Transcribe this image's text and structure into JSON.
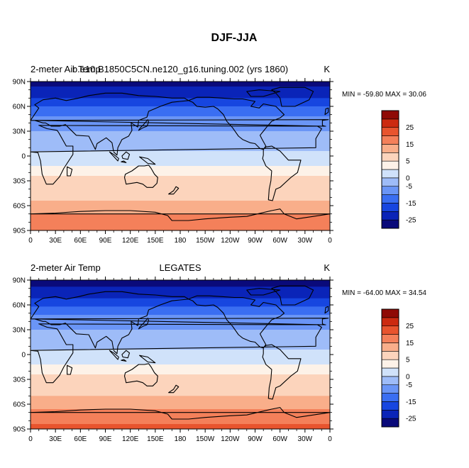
{
  "figure_title": "DJF-JJA",
  "chart_data": [
    {
      "type": "heatmap",
      "panel": "model",
      "left_label": "2-meter Air Temp",
      "case_title": "b.e10.B1850C5CN.ne120_g16.tuning.002 (yrs 1860)",
      "units": "K",
      "min_label": "MIN =",
      "min_value": "-59.80",
      "max_label": "MAX =",
      "max_value": "30.06",
      "x_ticks": [
        "0",
        "30E",
        "60E",
        "90E",
        "120E",
        "150E",
        "180",
        "150W",
        "120W",
        "90W",
        "60W",
        "30W",
        "0"
      ],
      "y_ticks": [
        "90N",
        "60N",
        "30N",
        "0",
        "30S",
        "60S",
        "90S"
      ],
      "xlim": [
        0,
        360
      ],
      "ylim": [
        -90,
        90
      ],
      "field_by_latitude": [
        {
          "lat": 90,
          "value": -27
        },
        {
          "lat": 75,
          "value": -22
        },
        {
          "lat": 60,
          "value": -15
        },
        {
          "lat": 45,
          "value": -9
        },
        {
          "lat": 30,
          "value": -5
        },
        {
          "lat": 15,
          "value": -2
        },
        {
          "lat": 0,
          "value": 1
        },
        {
          "lat": -15,
          "value": 3
        },
        {
          "lat": -30,
          "value": 6
        },
        {
          "lat": -45,
          "value": 8
        },
        {
          "lat": -60,
          "value": 11
        },
        {
          "lat": -75,
          "value": 17
        },
        {
          "lat": -90,
          "value": 20
        }
      ]
    },
    {
      "type": "heatmap",
      "panel": "observations",
      "left_label": "2-meter Air Temp",
      "case_title": "LEGATES",
      "units": "K",
      "min_label": "MIN =",
      "min_value": "-64.00",
      "max_label": "MAX =",
      "max_value": "34.54",
      "x_ticks": [
        "0",
        "30E",
        "60E",
        "90E",
        "120E",
        "150E",
        "180",
        "150W",
        "120W",
        "90W",
        "60W",
        "30W",
        "0"
      ],
      "y_ticks": [
        "90N",
        "60N",
        "30N",
        "0",
        "30S",
        "60S",
        "90S"
      ],
      "xlim": [
        0,
        360
      ],
      "ylim": [
        -90,
        90
      ],
      "field_by_latitude": [
        {
          "lat": 90,
          "value": -28
        },
        {
          "lat": 75,
          "value": -23
        },
        {
          "lat": 60,
          "value": -16
        },
        {
          "lat": 45,
          "value": -9
        },
        {
          "lat": 30,
          "value": -5
        },
        {
          "lat": 15,
          "value": -2
        },
        {
          "lat": 0,
          "value": 1
        },
        {
          "lat": -15,
          "value": 3
        },
        {
          "lat": -30,
          "value": 6
        },
        {
          "lat": -45,
          "value": 8
        },
        {
          "lat": -60,
          "value": 13
        },
        {
          "lat": -75,
          "value": 18
        },
        {
          "lat": -90,
          "value": 21
        }
      ]
    }
  ],
  "colorbar": {
    "levels": [
      -30,
      -25,
      -20,
      -15,
      -10,
      -5,
      0,
      2.5,
      5,
      10,
      15,
      20,
      25,
      30
    ],
    "labels": [
      "25",
      "15",
      "5",
      "0",
      "-5",
      "-15",
      "-25"
    ],
    "label_values": [
      25,
      15,
      5,
      0,
      -5,
      -15,
      -25
    ],
    "colors": [
      "#0a0a7a",
      "#0a24b8",
      "#1746e0",
      "#3a6ef2",
      "#6a95f6",
      "#9ebcf8",
      "#d0e2fa",
      "#fdf2e8",
      "#fcd4bc",
      "#f9ae8a",
      "#f4805a",
      "#e8542e",
      "#cc2a10",
      "#8f0a05"
    ]
  }
}
